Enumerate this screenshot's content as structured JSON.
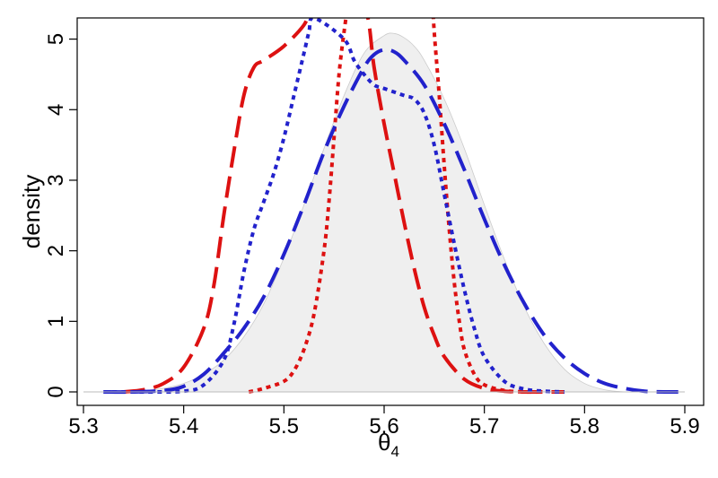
{
  "chart_data": {
    "type": "line",
    "title": "",
    "xlabel": "θ",
    "xlabel_subscript": "4",
    "ylabel": "density",
    "xlim": [
      5.3,
      5.9
    ],
    "ylim": [
      0,
      5.3
    ],
    "grid": false,
    "legend": "none",
    "x_ticks": [
      5.3,
      5.4,
      5.5,
      5.6,
      5.7,
      5.8,
      5.9
    ],
    "x_tick_labels": [
      "5.3",
      "5.4",
      "5.5",
      "5.6",
      "5.7",
      "5.8",
      "5.9"
    ],
    "y_ticks": [
      0,
      1,
      2,
      3,
      4,
      5
    ],
    "y_tick_labels": [
      "0",
      "1",
      "2",
      "3",
      "4",
      "5"
    ],
    "series": [
      {
        "style": "filled-gray-area",
        "color": "#cccccc",
        "fill": "#efefef",
        "x": [
          5.35,
          5.38,
          5.4,
          5.42,
          5.44,
          5.46,
          5.48,
          5.5,
          5.52,
          5.54,
          5.56,
          5.58,
          5.6,
          5.61,
          5.62,
          5.63,
          5.64,
          5.66,
          5.68,
          5.7,
          5.72,
          5.74,
          5.76,
          5.78,
          5.8,
          5.82,
          5.84
        ],
        "y": [
          0.0,
          0.05,
          0.12,
          0.25,
          0.45,
          0.78,
          1.25,
          1.9,
          2.65,
          3.45,
          4.2,
          4.8,
          5.05,
          5.08,
          5.02,
          4.9,
          4.7,
          4.15,
          3.45,
          2.65,
          1.88,
          1.2,
          0.68,
          0.32,
          0.12,
          0.03,
          0.0
        ]
      },
      {
        "style": "long-dash",
        "color": "#dd1111",
        "x": [
          5.34,
          5.36,
          5.38,
          5.4,
          5.42,
          5.43,
          5.44,
          5.45,
          5.46,
          5.47,
          5.48,
          5.5,
          5.52,
          5.525,
          5.53,
          5.56,
          5.58,
          5.585,
          5.59,
          5.6,
          5.61,
          5.62,
          5.63,
          5.64,
          5.65,
          5.66,
          5.68,
          5.7,
          5.72,
          5.74,
          5.76,
          5.78
        ],
        "y": [
          0.0,
          0.03,
          0.12,
          0.35,
          0.9,
          1.5,
          2.5,
          3.4,
          4.2,
          4.6,
          4.7,
          4.9,
          5.2,
          5.4,
          5.6,
          5.6,
          5.4,
          5.2,
          4.6,
          3.8,
          3.1,
          2.4,
          1.75,
          1.2,
          0.8,
          0.5,
          0.18,
          0.05,
          0.01,
          0.0,
          0.0,
          0.0
        ]
      },
      {
        "style": "dotted",
        "color": "#dd1111",
        "x": [
          5.465,
          5.48,
          5.5,
          5.51,
          5.52,
          5.53,
          5.54,
          5.545,
          5.55,
          5.555,
          5.56,
          5.565
        ],
        "y": [
          0.0,
          0.05,
          0.15,
          0.3,
          0.6,
          1.1,
          2.0,
          2.7,
          3.6,
          4.5,
          5.1,
          5.6
        ]
      },
      {
        "style": "dotted",
        "color": "#dd1111",
        "x": [
          5.648,
          5.65,
          5.655,
          5.66,
          5.665,
          5.67,
          5.675,
          5.68,
          5.69,
          5.7,
          5.72,
          5.74,
          5.76
        ],
        "y": [
          5.6,
          5.1,
          4.2,
          3.2,
          2.3,
          1.55,
          1.0,
          0.6,
          0.25,
          0.1,
          0.02,
          0.0,
          0.0
        ]
      },
      {
        "style": "dotted",
        "color": "#2222cc",
        "x": [
          5.32,
          5.36,
          5.4,
          5.42,
          5.44,
          5.45,
          5.46,
          5.47,
          5.48,
          5.49,
          5.5,
          5.51,
          5.52,
          5.525,
          5.53,
          5.56,
          5.57,
          5.58,
          5.59,
          5.6,
          5.62,
          5.63,
          5.64,
          5.65,
          5.66,
          5.67,
          5.68,
          5.69,
          5.7,
          5.72,
          5.74,
          5.76,
          5.78
        ],
        "y": [
          0.0,
          0.0,
          0.01,
          0.1,
          0.45,
          0.95,
          1.7,
          2.3,
          2.7,
          3.1,
          3.6,
          4.2,
          4.8,
          5.1,
          5.3,
          5.0,
          4.7,
          4.5,
          4.35,
          4.3,
          4.2,
          4.15,
          3.95,
          3.5,
          2.8,
          2.1,
          1.45,
          0.9,
          0.5,
          0.15,
          0.04,
          0.01,
          0.0
        ]
      },
      {
        "style": "long-dash",
        "color": "#2222cc",
        "x": [
          5.32,
          5.35,
          5.38,
          5.4,
          5.42,
          5.44,
          5.46,
          5.48,
          5.5,
          5.52,
          5.54,
          5.56,
          5.58,
          5.59,
          5.6,
          5.61,
          5.62,
          5.64,
          5.66,
          5.68,
          5.7,
          5.72,
          5.74,
          5.76,
          5.78,
          5.8,
          5.82,
          5.84,
          5.86,
          5.88,
          5.9
        ],
        "y": [
          0.0,
          0.0,
          0.02,
          0.08,
          0.25,
          0.55,
          0.9,
          1.35,
          1.95,
          2.65,
          3.4,
          4.05,
          4.6,
          4.78,
          4.85,
          4.82,
          4.7,
          4.35,
          3.8,
          3.15,
          2.45,
          1.8,
          1.25,
          0.8,
          0.48,
          0.26,
          0.12,
          0.05,
          0.01,
          0.0,
          0.0
        ]
      }
    ]
  }
}
